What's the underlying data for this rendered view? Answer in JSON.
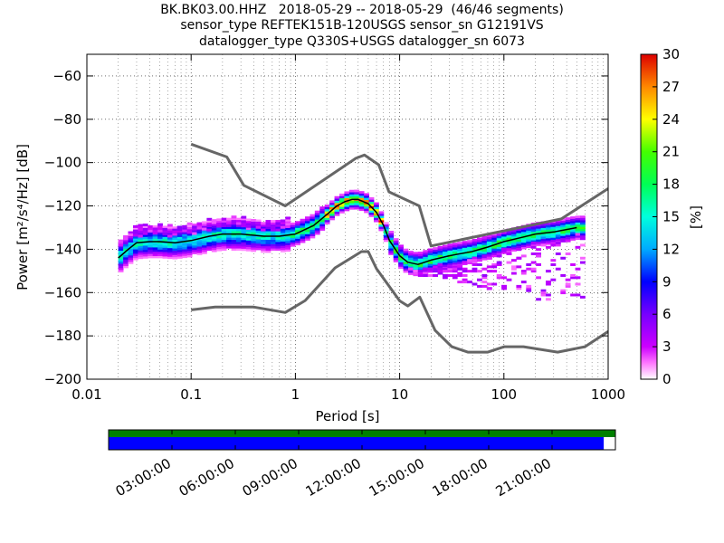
{
  "title": {
    "line1": "BK.BK03.00.HHZ   2018-05-29 -- 2018-05-29  (46/46 segments)",
    "line2": "sensor_type REFTEK151B-120USGS sensor_sn G12191VS",
    "line3": "datalogger_type Q330S+USGS datalogger_sn 6073"
  },
  "chart_data": {
    "type": "heatmap",
    "xlabel": "Period [s]",
    "ylabel": "Power [m²/s⁴/Hz] [dB]",
    "xscale": "log",
    "xlim": [
      0.01,
      1000
    ],
    "ylim": [
      -200,
      -50
    ],
    "xticks": [
      "0.01",
      "0.1",
      "1",
      "10",
      "100",
      "1000"
    ],
    "yticks": [
      "−200",
      "−180",
      "−160",
      "−140",
      "−120",
      "−100",
      "−80",
      "−60"
    ],
    "yticks_values": [
      -200,
      -180,
      -160,
      -140,
      -120,
      -100,
      -80,
      -60
    ],
    "colorbar": {
      "label": "[%]",
      "min": 0,
      "max": 30,
      "ticks": [
        "0",
        "3",
        "6",
        "9",
        "12",
        "15",
        "18",
        "21",
        "24",
        "27",
        "30"
      ]
    },
    "high_noise_model": {
      "period": [
        0.1,
        0.22,
        0.32,
        0.8,
        3.8,
        4.6,
        6.3,
        7.9,
        15.4,
        20,
        354.8,
        1000
      ],
      "power": [
        -91.5,
        -97.4,
        -110.5,
        -120,
        -98,
        -96.5,
        -101,
        -113.5,
        -120,
        -138.5,
        -126,
        -112
      ]
    },
    "low_noise_model": {
      "period": [
        0.1,
        0.17,
        0.4,
        0.8,
        1.24,
        2.4,
        4.3,
        5,
        6,
        10,
        12,
        15.6,
        21.9,
        31.6,
        45,
        70,
        101,
        154,
        328,
        600,
        1000
      ],
      "power": [
        -168,
        -166.7,
        -166.7,
        -169.2,
        -163.7,
        -148.6,
        -141.1,
        -141.1,
        -149,
        -163.8,
        -166.2,
        -162.1,
        -177.5,
        -185,
        -187.5,
        -187.5,
        -185,
        -185,
        -187.5,
        -185,
        -178
      ]
    },
    "mean_psd": {
      "period": [
        0.02,
        0.025,
        0.03,
        0.04,
        0.05,
        0.07,
        0.1,
        0.15,
        0.2,
        0.3,
        0.5,
        0.7,
        1,
        1.5,
        2,
        2.5,
        3,
        3.5,
        4,
        5,
        6,
        7,
        8,
        10,
        12,
        15,
        20,
        30,
        50,
        70,
        100,
        150,
        200,
        300,
        500
      ],
      "power": [
        -144,
        -140,
        -137,
        -136.5,
        -136.5,
        -137,
        -136,
        -134,
        -133,
        -133,
        -134,
        -134,
        -133,
        -129,
        -124,
        -120,
        -118,
        -117,
        -117,
        -119,
        -123,
        -129,
        -136,
        -143,
        -146,
        -147,
        -145,
        -143,
        -141,
        -139,
        -136.5,
        -134.5,
        -133,
        -132,
        -130
      ]
    },
    "time_axis": {
      "ticks": [
        "03:00:00",
        "06:00:00",
        "09:00:00",
        "12:00:00",
        "15:00:00",
        "18:00:00",
        "21:00:00"
      ],
      "coverage_fraction": 0.977
    },
    "colors": {
      "noise_model": "#666666",
      "mean_line": "#000000",
      "coverage_green": "#008000",
      "coverage_blue": "#0000ff"
    }
  }
}
